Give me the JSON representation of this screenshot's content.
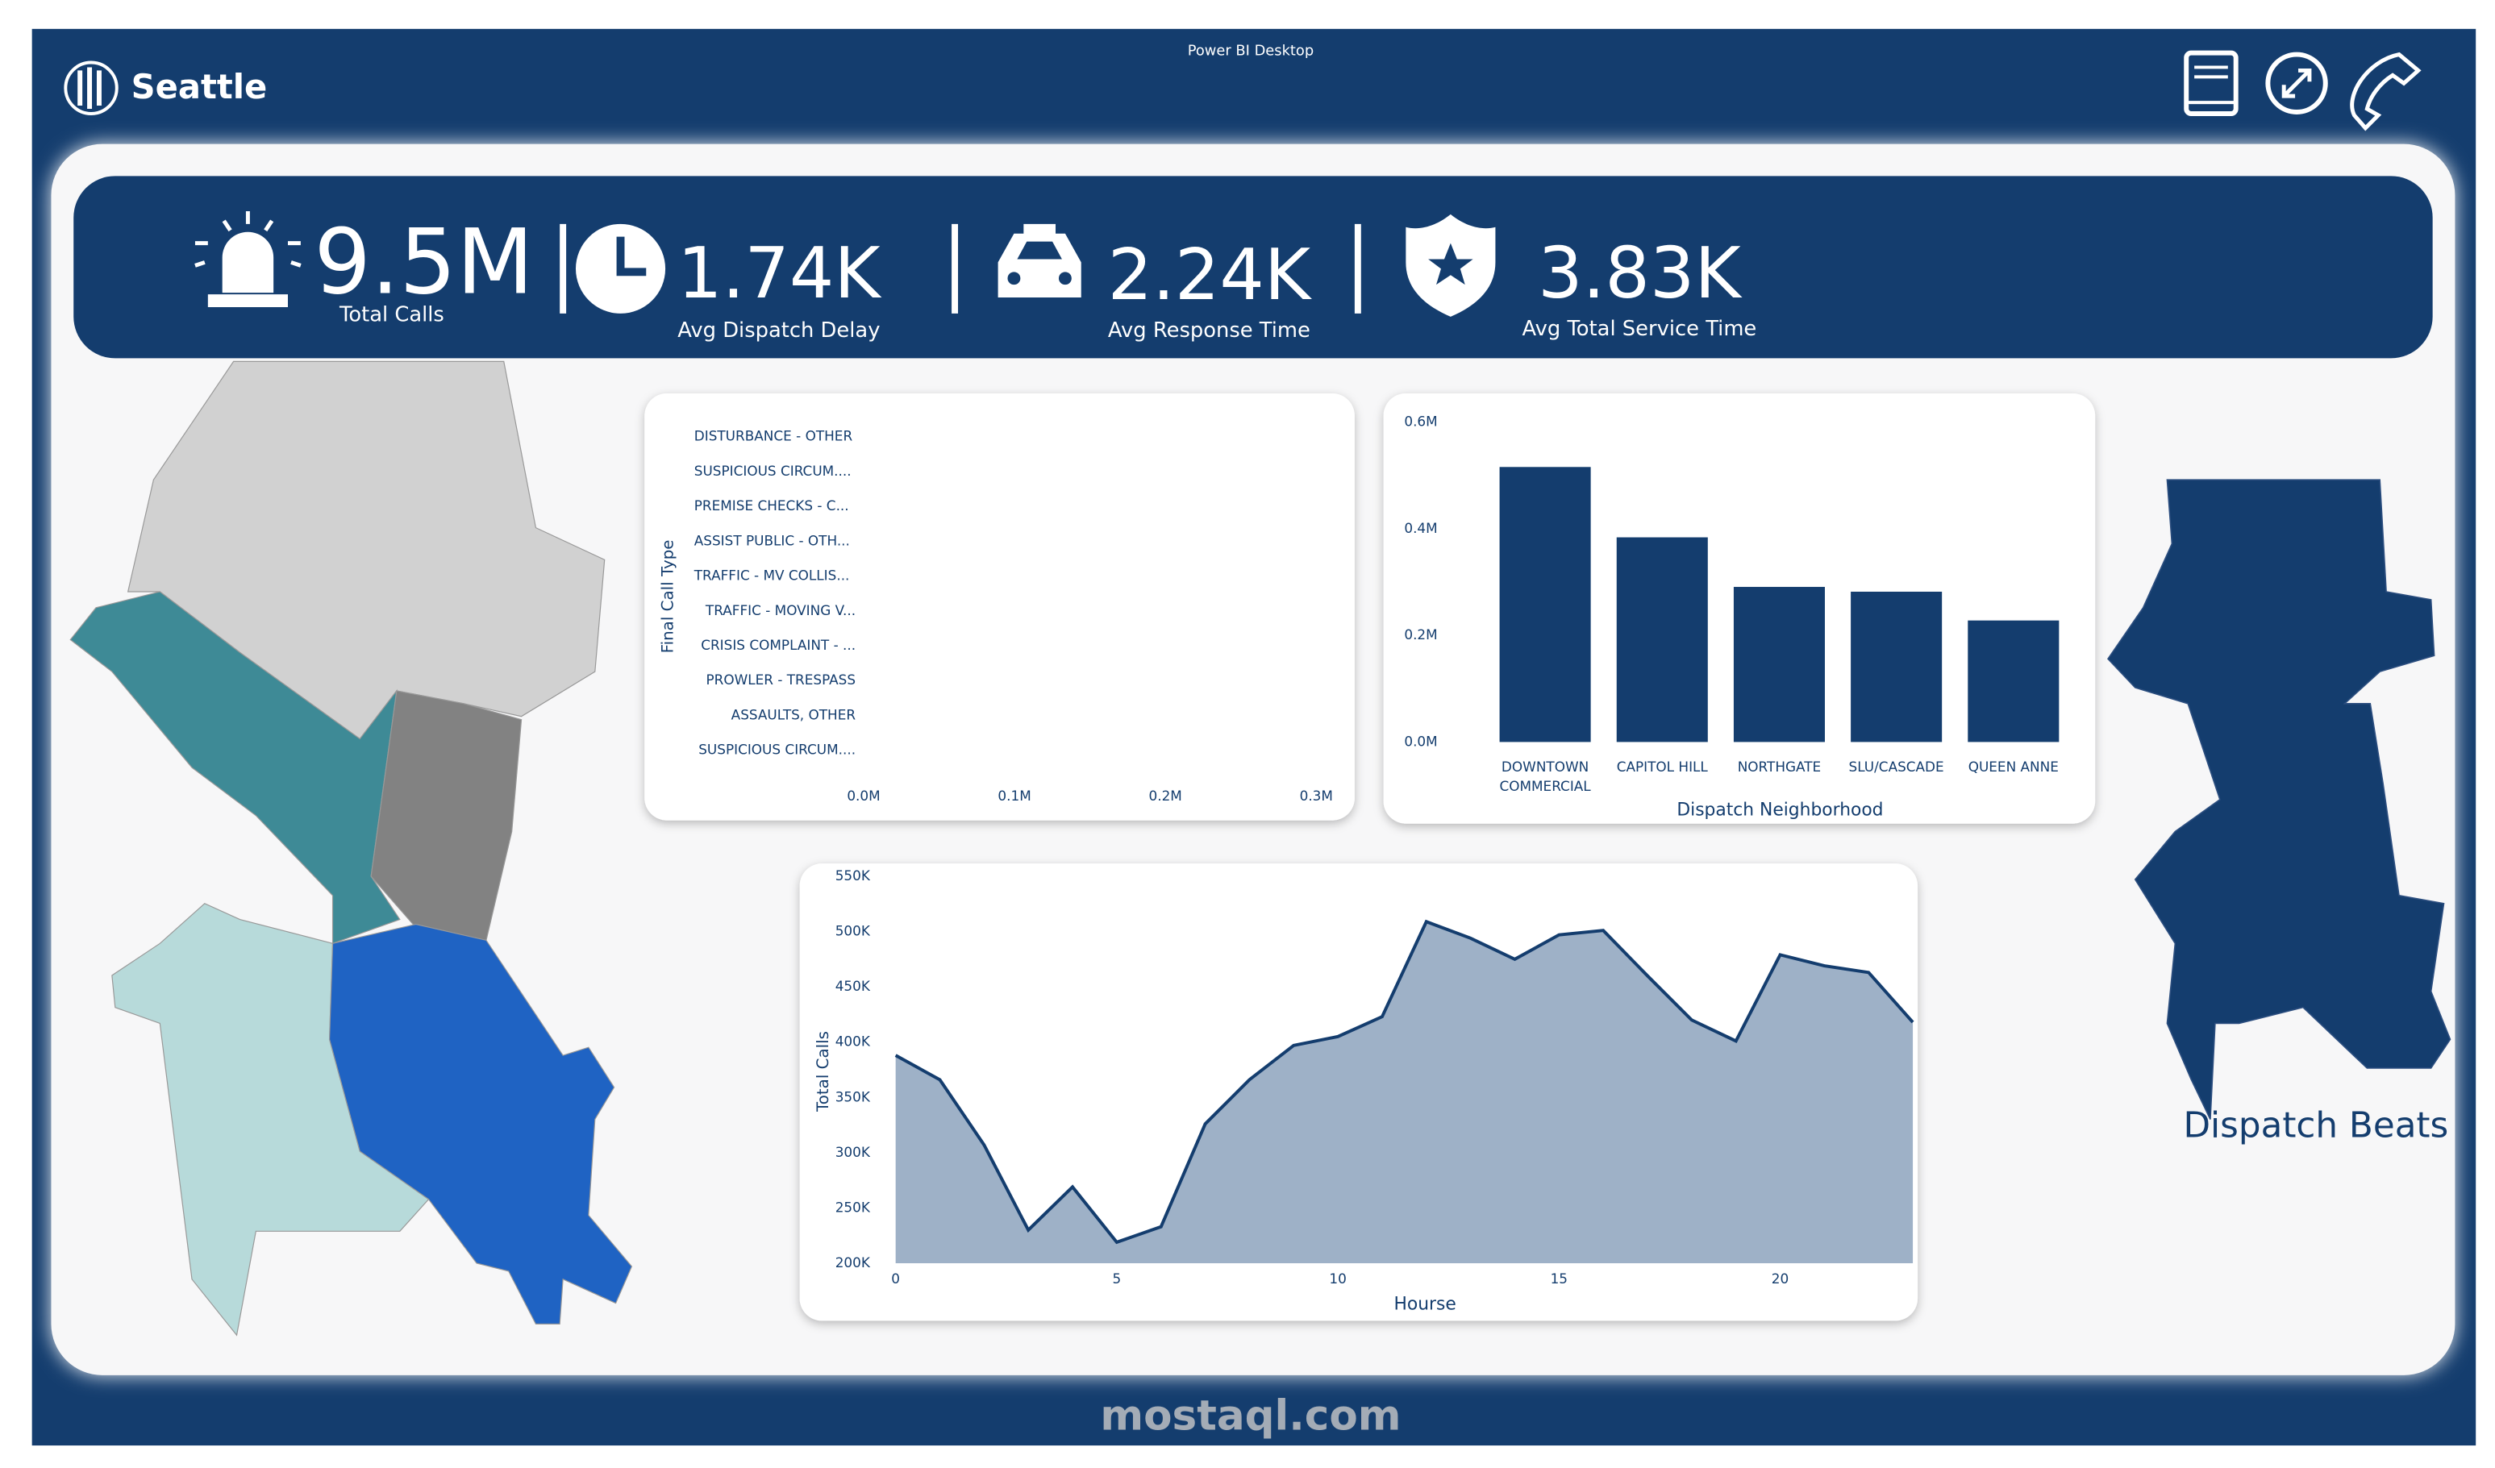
{
  "header": {
    "city": "Seattle",
    "app_title": "Power BI Desktop"
  },
  "kpis": [
    {
      "value": "9.5M",
      "label": "Total Calls"
    },
    {
      "value": "1.74K",
      "label": "Avg Dispatch Delay"
    },
    {
      "value": "2.24K",
      "label": "Avg Response Time"
    },
    {
      "value": "3.83K",
      "label": "Avg Total Service Time"
    }
  ],
  "call_type_chart": {
    "y_title": "Final Call Type",
    "categories": [
      "DISTURBANCE - OTHER",
      "SUSPICIOUS CIRCUM....",
      "PREMISE CHECKS - C...",
      "ASSIST PUBLIC - OTH...",
      "TRAFFIC - MV COLLIS...",
      "TRAFFIC - MOVING V...",
      "CRISIS COMPLAINT - ...",
      "PROWLER - TRESPASS",
      "ASSAULTS, OTHER",
      "SUSPICIOUS CIRCUM...."
    ],
    "xlim": [
      0,
      0.3
    ],
    "xticks": [
      {
        "value": 0,
        "label": "0.0M"
      },
      {
        "value": 0.1,
        "label": "0.1M"
      },
      {
        "value": 0.2,
        "label": "0.2M"
      },
      {
        "value": 0.3,
        "label": "0.3M"
      }
    ]
  },
  "chart_data": [
    {
      "type": "bar",
      "x_title": "Dispatch Neighborhood",
      "categories": [
        "DOWNTOWN COMMERCIAL",
        "CAPITOL HILL",
        "NORTHGATE",
        "SLU/CASCADE",
        "QUEEN ANNE"
      ],
      "values": [
        0.516,
        0.384,
        0.291,
        0.282,
        0.228
      ],
      "color": "#143d6e",
      "ylim": [
        0,
        0.6
      ],
      "yticks": [
        {
          "value": 0,
          "label": "0.0M"
        },
        {
          "value": 0.2,
          "label": "0.2M"
        },
        {
          "value": 0.4,
          "label": "0.4M"
        },
        {
          "value": 0.6,
          "label": "0.6M"
        }
      ]
    },
    {
      "type": "area",
      "x_title": "Hourse",
      "y_title": "Total Calls",
      "x": [
        0,
        1,
        2,
        3,
        4,
        5,
        6,
        7,
        8,
        9,
        10,
        11,
        12,
        13,
        14,
        15,
        16,
        17,
        18,
        19,
        20,
        21,
        22,
        23
      ],
      "values": [
        388,
        366,
        307,
        230,
        269,
        219,
        233,
        326,
        366,
        397,
        405,
        423,
        509,
        494,
        475,
        497,
        501,
        460,
        420,
        401,
        479,
        469,
        463,
        418
      ],
      "color": "#143d6e",
      "fill": "#9eb1c7",
      "xlim": [
        0,
        23
      ],
      "xticks": [
        0,
        5,
        10,
        15,
        20
      ],
      "ylim": [
        200,
        550
      ],
      "yticks": [
        {
          "value": 200,
          "label": "200K"
        },
        {
          "value": 250,
          "label": "250K"
        },
        {
          "value": 300,
          "label": "300K"
        },
        {
          "value": 350,
          "label": "350K"
        },
        {
          "value": 400,
          "label": "400K"
        },
        {
          "value": 450,
          "label": "450K"
        },
        {
          "value": 500,
          "label": "500K"
        },
        {
          "value": 550,
          "label": "550K"
        }
      ]
    }
  ],
  "map_title": "Dispatch Beats",
  "watermark": "mostaql.com"
}
